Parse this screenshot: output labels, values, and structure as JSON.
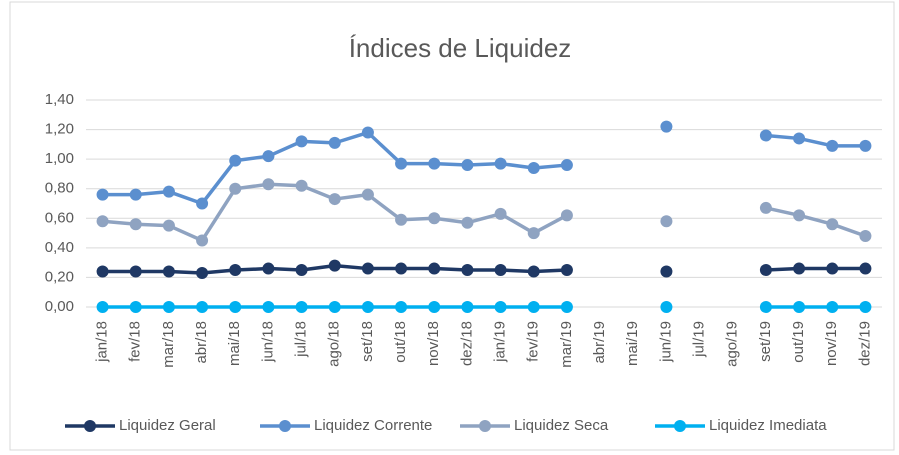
{
  "chart_data": {
    "type": "line",
    "title": "Índices de Liquidez",
    "categories": [
      "jan/18",
      "fev/18",
      "mar/18",
      "abr/18",
      "mai/18",
      "jun/18",
      "jul/18",
      "ago/18",
      "set/18",
      "out/18",
      "nov/18",
      "dez/18",
      "jan/19",
      "fev/19",
      "mar/19",
      "abr/19",
      "mai/19",
      "jun/19",
      "jul/19",
      "ago/19",
      "set/19",
      "out/19",
      "nov/19",
      "dez/19"
    ],
    "series": [
      {
        "name": "Liquidez Geral",
        "color": "#1f3864",
        "values": [
          0.24,
          0.24,
          0.24,
          0.23,
          0.25,
          0.26,
          0.25,
          0.28,
          0.26,
          0.26,
          0.26,
          0.25,
          0.25,
          0.24,
          0.25,
          null,
          null,
          0.24,
          null,
          null,
          0.25,
          0.26,
          0.26,
          0.26
        ]
      },
      {
        "name": "Liquidez Corrente",
        "color": "#5b8fcf",
        "values": [
          0.76,
          0.76,
          0.78,
          0.7,
          0.99,
          1.02,
          1.12,
          1.11,
          1.18,
          0.97,
          0.97,
          0.96,
          0.97,
          0.94,
          0.96,
          null,
          null,
          1.22,
          null,
          null,
          1.16,
          1.14,
          1.09,
          1.09
        ]
      },
      {
        "name": "Liquidez Seca",
        "color": "#8fa3c1",
        "values": [
          0.58,
          0.56,
          0.55,
          0.45,
          0.8,
          0.83,
          0.82,
          0.73,
          0.76,
          0.59,
          0.6,
          0.57,
          0.63,
          0.5,
          0.62,
          null,
          null,
          0.58,
          null,
          null,
          0.67,
          0.62,
          0.56,
          0.48
        ]
      },
      {
        "name": "Liquidez Imediata",
        "color": "#00b0f0",
        "values": [
          0,
          0,
          0,
          0,
          0,
          0,
          0,
          0,
          0,
          0,
          0,
          0,
          0,
          0,
          0,
          null,
          null,
          0,
          null,
          null,
          0,
          0,
          0,
          0
        ]
      }
    ],
    "ylim": [
      0,
      1.4
    ],
    "yticks": [
      {
        "value": 0,
        "label": "0,00"
      },
      {
        "value": 0.2,
        "label": "0,20"
      },
      {
        "value": 0.4,
        "label": "0,40"
      },
      {
        "value": 0.6,
        "label": "0,60"
      },
      {
        "value": 0.8,
        "label": "0,80"
      },
      {
        "value": 1.0,
        "label": "1,00"
      },
      {
        "value": 1.2,
        "label": "1,20"
      },
      {
        "value": 1.4,
        "label": "1,40"
      }
    ],
    "grid": true,
    "legend": "bottom"
  }
}
